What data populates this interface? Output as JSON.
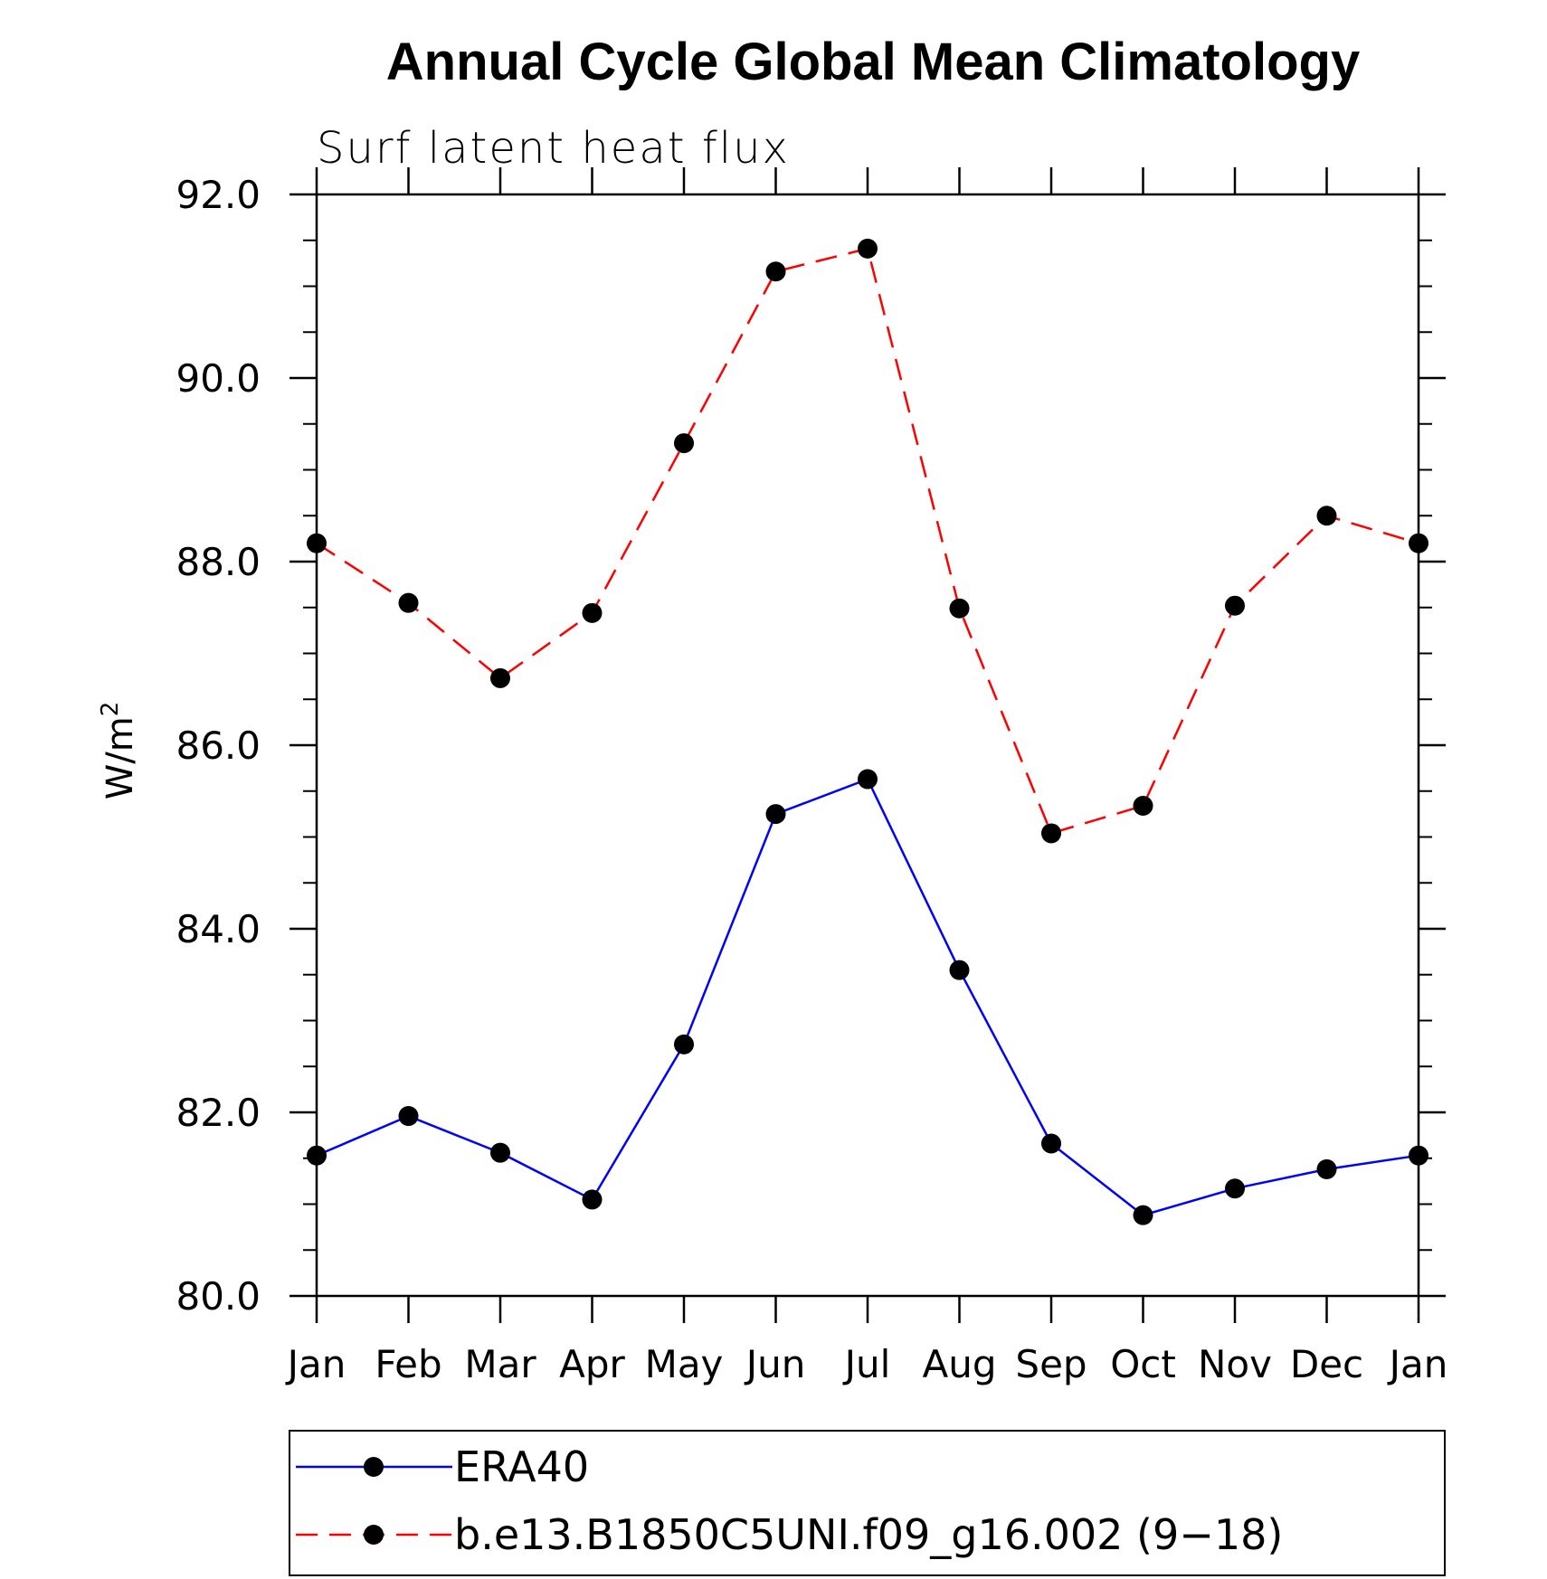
{
  "chart_data": {
    "type": "line",
    "title": "Annual Cycle Global Mean Climatology",
    "subtitle": "Surf latent heat flux",
    "ylabel": "W/m",
    "ylabel_sup": "2",
    "xlabel": "",
    "categories": [
      "Jan",
      "Feb",
      "Mar",
      "Apr",
      "May",
      "Jun",
      "Jul",
      "Aug",
      "Sep",
      "Oct",
      "Nov",
      "Dec",
      "Jan"
    ],
    "ylim": [
      80.0,
      92.0
    ],
    "yticks": [
      "80.0",
      "82.0",
      "84.0",
      "86.0",
      "88.0",
      "90.0",
      "92.0"
    ],
    "grid": false,
    "legend_position": "bottom",
    "series": [
      {
        "name": "ERA40",
        "color": "#0000ff",
        "style": "solid",
        "marker": "filled-circle",
        "values": [
          81.53,
          81.96,
          81.56,
          81.05,
          82.74,
          85.25,
          85.63,
          83.55,
          81.66,
          80.88,
          81.17,
          81.38,
          81.53
        ]
      },
      {
        "name": "b.e13.B1850C5UNI.f09_g16.002 (9−18)",
        "color": "#ff0000",
        "style": "dashed",
        "marker": "filled-circle",
        "values": [
          88.2,
          87.55,
          86.73,
          87.44,
          89.29,
          91.16,
          91.41,
          87.49,
          85.04,
          85.34,
          87.52,
          88.5,
          88.2
        ]
      }
    ]
  }
}
